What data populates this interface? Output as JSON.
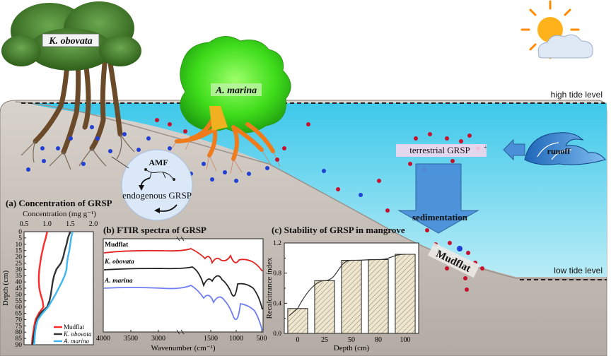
{
  "labels": {
    "tree1": "K. obovata",
    "tree2": "A. marina",
    "high_tide": "high tide level",
    "low_tide": "low tide level",
    "amf": "AMF",
    "endogenous": "endogenous GRSP",
    "terrestrial": "terrestrial  GRSP",
    "runoff": "runoff",
    "sedimentation": "sedimentation",
    "mudflat": "Mudflat"
  },
  "colors": {
    "water": "#5fd3ec",
    "soil": "#c9c2bb",
    "mudflat_line": "#ff2a2a",
    "kobovata_line": "#333333",
    "amarina_line": "#3fb6f0",
    "red_dot": "#c8102e",
    "blue_dot": "#1f3fd6",
    "arrow_blue": "#4a90d9"
  },
  "chart_data": [
    {
      "type": "line",
      "title": "(a) Concentration of GRSP",
      "xlabel": "Concentration (mg g⁻¹)",
      "ylabel": "Depth (cm)",
      "xlim": [
        0.5,
        2.0
      ],
      "ylim": [
        0,
        90
      ],
      "xticks": [
        "0.5",
        "1.0",
        "1.5",
        "2.0"
      ],
      "yticks": [
        "0",
        "5",
        "10",
        "15",
        "20",
        "25",
        "30",
        "35",
        "40",
        "45",
        "50",
        "55",
        "60",
        "65",
        "70",
        "75",
        "80",
        "85",
        "90"
      ],
      "legend_position": "bottom-right",
      "series": [
        {
          "name": "Mudflat",
          "color": "#ff2a2a",
          "depth": [
            0,
            5,
            10,
            15,
            20,
            25,
            30,
            35,
            40,
            45,
            50,
            55,
            60,
            65,
            70,
            75,
            80,
            85,
            90
          ],
          "values": [
            1.0,
            0.97,
            0.93,
            0.9,
            0.87,
            0.85,
            0.83,
            0.82,
            0.82,
            0.83,
            0.86,
            0.9,
            0.92,
            0.82,
            0.75,
            0.72,
            0.7,
            0.68,
            0.67
          ]
        },
        {
          "name": "K. obovata",
          "color": "#333333",
          "depth": [
            0,
            5,
            10,
            15,
            20,
            25,
            30,
            35,
            40,
            45,
            50,
            55,
            60,
            65,
            70,
            75,
            80,
            85,
            90
          ],
          "values": [
            1.5,
            1.45,
            1.42,
            1.38,
            1.35,
            1.3,
            1.2,
            1.15,
            1.12,
            1.1,
            1.08,
            1.05,
            1.0,
            0.85,
            0.78,
            0.75,
            0.72,
            0.7,
            0.68
          ]
        },
        {
          "name": "A. marina",
          "color": "#3fb6f0",
          "depth": [
            0,
            5,
            10,
            15,
            20,
            25,
            30,
            35,
            40,
            45,
            50,
            55,
            60,
            65,
            70,
            75,
            80,
            85,
            90
          ],
          "values": [
            1.55,
            1.52,
            1.5,
            1.48,
            1.45,
            1.43,
            1.42,
            1.38,
            1.32,
            1.25,
            1.18,
            1.1,
            1.02,
            0.9,
            0.8,
            0.76,
            0.74,
            0.73,
            0.72
          ]
        }
      ]
    },
    {
      "type": "line",
      "title": "(b) FTIR spectra of GRSP",
      "xlabel": "Wavenumber (cm⁻¹)",
      "xticks": [
        "4000",
        "3500",
        "3000",
        "1500",
        "1000",
        "500"
      ],
      "series": [
        {
          "name": "Mudflat",
          "color": "#e32222"
        },
        {
          "name": "K. obovata",
          "color": "#222222"
        },
        {
          "name": "A. marina",
          "color": "#6f7ef5"
        }
      ]
    },
    {
      "type": "bar",
      "title": "(c) Stability of GRSP in mangrove",
      "xlabel": "Depth (cm)",
      "ylabel": "Recalcitrance index",
      "categories": [
        "0",
        "25",
        "50",
        "80",
        "100"
      ],
      "values": [
        0.33,
        0.7,
        0.97,
        0.98,
        1.05
      ],
      "ylim": [
        0,
        1.2
      ],
      "yticks": [
        "0.0",
        "0.4",
        "0.8",
        "1.2"
      ],
      "ytick_values": [
        0,
        0.4,
        0.8,
        1.2
      ],
      "minor_yticks": [
        "0.2",
        "0.6",
        "1.0"
      ],
      "minor_ytick_values": [
        0.2,
        0.6,
        1.0
      ]
    }
  ]
}
